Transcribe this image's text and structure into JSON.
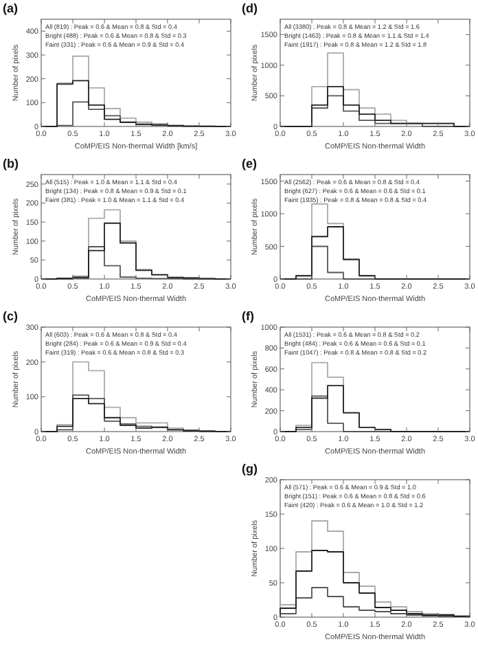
{
  "chart_data": [
    {
      "type": "histogram",
      "title": "(a)",
      "xlabel": "CoMP/EIS Non-thermal Width [km/s]",
      "ylabel": "Number of pixels",
      "bins": [
        0,
        0.25,
        0.5,
        0.75,
        1,
        1.25,
        1.5,
        1.75,
        2,
        2.25,
        2.5,
        2.75,
        3
      ],
      "xlim": [
        0,
        3
      ],
      "xticks": [
        {
          "value": 0,
          "label": "0.0"
        },
        0.5,
        {
          "value": 1,
          "label": "1.0"
        },
        1.5,
        {
          "value": 2,
          "label": "2.0"
        },
        2.5,
        {
          "value": 3,
          "label": "3.0"
        }
      ],
      "ylim": [
        0,
        450
      ],
      "yticks": [
        0,
        100,
        200,
        300,
        400
      ],
      "grid": false,
      "annotations": [
        "All (819) : Peak = 0.6 & Mean = 0.8 & Std = 0.4",
        "Bright (488) : Peak = 0.6 & Mean = 0.8 & Std = 0.3",
        "Faint (331) : Peak = 0.6 & Mean = 0.9 & Std = 0.4"
      ],
      "series": [
        {
          "color": "#aaaaaa",
          "values": [
            0,
            182,
            295,
            162,
            75,
            35,
            18,
            12,
            5,
            2,
            1,
            0
          ]
        },
        {
          "color": "#555555",
          "values": [
            0,
            4,
            103,
            72,
            45,
            18,
            8,
            5,
            2,
            1,
            0,
            0
          ]
        },
        {
          "color": "#222222",
          "values": [
            0,
            178,
            192,
            90,
            30,
            17,
            10,
            7,
            3,
            1,
            1,
            0
          ]
        }
      ]
    },
    {
      "type": "histogram",
      "title": "(b)",
      "xlabel": "CoMP/EIS Non-thermal Width",
      "ylabel": "Number of pixels",
      "bins": [
        0,
        0.25,
        0.5,
        0.75,
        1,
        1.25,
        1.5,
        1.75,
        2,
        2.25,
        2.5,
        2.75,
        3
      ],
      "xlim": [
        0,
        3
      ],
      "xticks": [
        {
          "value": 0,
          "label": "0.0"
        },
        0.5,
        {
          "value": 1,
          "label": "1.0"
        },
        1.5,
        {
          "value": 2,
          "label": "2.0"
        },
        2.5,
        {
          "value": 3,
          "label": "3.0"
        }
      ],
      "ylim": [
        0,
        275
      ],
      "yticks": [
        0,
        50,
        100,
        150,
        200,
        250
      ],
      "grid": false,
      "annotations": [
        "All (515) : Peak = 1.0 & Mean = 1.1 & Std = 0.4",
        "Bright (134) : Peak = 0.8 & Mean = 0.9 & Std = 0.1",
        "Faint (381) : Peak = 1.0 & Mean = 1.1 & Std = 0.4"
      ],
      "series": [
        {
          "color": "#aaaaaa",
          "values": [
            0,
            2,
            8,
            160,
            182,
            100,
            25,
            12,
            5,
            3,
            1,
            0
          ]
        },
        {
          "color": "#555555",
          "values": [
            0,
            0,
            5,
            85,
            35,
            5,
            2,
            1,
            1,
            0,
            0,
            0
          ]
        },
        {
          "color": "#222222",
          "values": [
            0,
            2,
            3,
            75,
            147,
            95,
            23,
            11,
            4,
            3,
            1,
            0
          ]
        }
      ]
    },
    {
      "type": "histogram",
      "title": "(c)",
      "xlabel": "CoMP/EIS Non-thermal Width",
      "ylabel": "Number of pixels",
      "bins": [
        0,
        0.25,
        0.5,
        0.75,
        1,
        1.25,
        1.5,
        1.75,
        2,
        2.25,
        2.5,
        2.75,
        3
      ],
      "xlim": [
        0,
        3
      ],
      "xticks": [
        {
          "value": 0,
          "label": "0.0"
        },
        0.5,
        {
          "value": 1,
          "label": "1.0"
        },
        1.5,
        {
          "value": 2,
          "label": "2.0"
        },
        2.5,
        {
          "value": 3,
          "label": "3.0"
        }
      ],
      "ylim": [
        0,
        300
      ],
      "yticks": [
        0,
        100,
        200,
        300
      ],
      "grid": false,
      "annotations": [
        "All (603) : Peak = 0.6 & Mean = 0.8 & Std = 0.4",
        "Bright (284) : Peak = 0.6 & Mean = 0.9 & Std = 0.4",
        "Faint (319) : Peak = 0.6 & Mean = 0.8 & Std = 0.3"
      ],
      "series": [
        {
          "color": "#aaaaaa",
          "values": [
            0,
            20,
            200,
            175,
            70,
            40,
            25,
            25,
            10,
            5,
            2,
            0
          ]
        },
        {
          "color": "#555555",
          "values": [
            0,
            5,
            105,
            95,
            30,
            22,
            15,
            13,
            5,
            3,
            1,
            0
          ]
        },
        {
          "color": "#222222",
          "values": [
            0,
            15,
            95,
            80,
            40,
            18,
            10,
            12,
            5,
            2,
            1,
            0
          ]
        }
      ]
    },
    {
      "type": "histogram",
      "title": "(d)",
      "xlabel": "CoMP/EIS Non-thermal Width",
      "ylabel": "Number of pixels",
      "bins": [
        0,
        0.25,
        0.5,
        0.75,
        1,
        1.25,
        1.5,
        1.75,
        2,
        2.25,
        2.5,
        2.75,
        3
      ],
      "xlim": [
        0,
        3
      ],
      "xticks": [
        {
          "value": 0,
          "label": "0.0"
        },
        0.5,
        {
          "value": 1,
          "label": "1.0"
        },
        1.5,
        {
          "value": 2,
          "label": "2.0"
        },
        2.5,
        {
          "value": 3,
          "label": "3.0"
        }
      ],
      "ylim": [
        0,
        1750
      ],
      "yticks": [
        0,
        500,
        1000,
        1500
      ],
      "grid": false,
      "annotations": [
        "All (3380) : Peak = 0.8 & Mean = 1.2 & Std = 1.6",
        "Bright (1463) : Peak = 0.8 & Mean = 1.1 & Std = 1.4",
        "Faint (1917) : Peak = 0.8 & Mean = 1.2 & Std = 1.8"
      ],
      "series": [
        {
          "color": "#aaaaaa",
          "values": [
            0,
            0,
            650,
            1200,
            600,
            300,
            200,
            100,
            50,
            50,
            50,
            0
          ]
        },
        {
          "color": "#555555",
          "values": [
            0,
            0,
            300,
            500,
            250,
            100,
            50,
            50,
            50,
            0,
            0,
            0
          ]
        },
        {
          "color": "#222222",
          "values": [
            0,
            0,
            350,
            650,
            350,
            200,
            100,
            50,
            50,
            50,
            50,
            0
          ]
        }
      ]
    },
    {
      "type": "histogram",
      "title": "(e)",
      "xlabel": "CoMP/EIS Non-thermal Width",
      "ylabel": "Number of pixels",
      "bins": [
        0,
        0.25,
        0.5,
        0.75,
        1,
        1.25,
        1.5,
        1.75,
        2,
        2.25,
        2.5,
        2.75,
        3
      ],
      "xlim": [
        0,
        3
      ],
      "xticks": [
        {
          "value": 0,
          "label": "0.0"
        },
        0.5,
        {
          "value": 1,
          "label": "1.0"
        },
        1.5,
        {
          "value": 2,
          "label": "2.0"
        },
        2.5,
        {
          "value": 3,
          "label": "3.0"
        }
      ],
      "ylim": [
        0,
        1600
      ],
      "yticks": [
        0,
        500,
        1000,
        1500
      ],
      "grid": false,
      "annotations": [
        "All (2562) : Peak = 0.6 & Mean = 0.8 & Std = 0.4",
        "Bright (627) : Peak = 0.6 & Mean = 0.6 & Std = 0.1",
        "Faint (1935) : Peak = 0.8 & Mean = 0.8 & Std = 0.4"
      ],
      "series": [
        {
          "color": "#aaaaaa",
          "values": [
            0,
            50,
            1150,
            850,
            300,
            50,
            0,
            0,
            0,
            0,
            0,
            0
          ]
        },
        {
          "color": "#555555",
          "values": [
            0,
            0,
            500,
            100,
            0,
            0,
            0,
            0,
            0,
            0,
            0,
            0
          ]
        },
        {
          "color": "#222222",
          "values": [
            0,
            50,
            650,
            800,
            300,
            50,
            0,
            0,
            0,
            0,
            0,
            0
          ]
        }
      ]
    },
    {
      "type": "histogram",
      "title": "(f)",
      "xlabel": "CoMP/EIS Non-thermal Width",
      "ylabel": "Number of pixels",
      "bins": [
        0,
        0.25,
        0.5,
        0.75,
        1,
        1.25,
        1.5,
        1.75,
        2,
        2.25,
        2.5,
        2.75,
        3
      ],
      "xlim": [
        0,
        3
      ],
      "xticks": [
        {
          "value": 0,
          "label": "0.0"
        },
        0.5,
        {
          "value": 1,
          "label": "1.0"
        },
        1.5,
        {
          "value": 2,
          "label": "2.0"
        },
        2.5,
        {
          "value": 3,
          "label": "3.0"
        }
      ],
      "ylim": [
        0,
        1000
      ],
      "yticks": [
        0,
        200,
        400,
        600,
        800,
        1000
      ],
      "grid": false,
      "annotations": [
        "All (1531) : Peak = 0.6 & Mean = 0.8 & Std = 0.2",
        "Bright (484) : Peak = 0.6 & Mean = 0.6 & Std = 0.1",
        "Faint (1047) : Peak = 0.8 & Mean = 0.8 & Std = 0.2"
      ],
      "series": [
        {
          "color": "#aaaaaa",
          "values": [
            0,
            60,
            660,
            520,
            180,
            40,
            20,
            0,
            0,
            0,
            0,
            0
          ]
        },
        {
          "color": "#555555",
          "values": [
            0,
            20,
            340,
            80,
            0,
            0,
            0,
            0,
            0,
            0,
            0,
            0
          ]
        },
        {
          "color": "#222222",
          "values": [
            0,
            40,
            320,
            440,
            180,
            40,
            20,
            0,
            0,
            0,
            0,
            0
          ]
        }
      ]
    },
    {
      "type": "histogram",
      "title": "(g)",
      "xlabel": "CoMP/EIS Non-thermal Width",
      "ylabel": "Number of pixels",
      "bins": [
        0,
        0.25,
        0.5,
        0.75,
        1,
        1.25,
        1.5,
        1.75,
        2,
        2.25,
        2.5,
        2.75,
        3
      ],
      "xlim": [
        0,
        3
      ],
      "xticks": [
        {
          "value": 0,
          "label": "0.0"
        },
        0.5,
        {
          "value": 1,
          "label": "1.0"
        },
        1.5,
        {
          "value": 2,
          "label": "2.0"
        },
        2.5,
        {
          "value": 3,
          "label": "3.0"
        }
      ],
      "ylim": [
        0,
        200
      ],
      "yticks": [
        0,
        50,
        100,
        150,
        200
      ],
      "grid": false,
      "annotations": [
        "All (571) : Peak = 0.6 & Mean = 0.9 & Std = 1.0",
        "Bright (151) : Peak = 0.6 & Mean = 0.8 & Std = 0.6",
        "Faint (420) : Peak = 0.6 & Mean = 1.0 & Std = 1.2"
      ],
      "series": [
        {
          "color": "#aaaaaa",
          "values": [
            18,
            95,
            140,
            125,
            65,
            45,
            22,
            15,
            8,
            5,
            4,
            2
          ]
        },
        {
          "color": "#555555",
          "values": [
            5,
            28,
            43,
            30,
            15,
            10,
            8,
            5,
            3,
            2,
            1,
            1
          ]
        },
        {
          "color": "#222222",
          "values": [
            13,
            67,
            97,
            95,
            50,
            35,
            14,
            10,
            5,
            3,
            3,
            1
          ]
        }
      ]
    }
  ]
}
